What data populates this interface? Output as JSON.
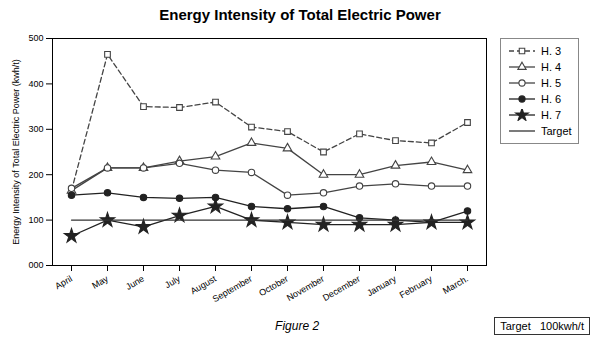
{
  "chart_data": {
    "type": "line",
    "title": "Energy Intensity of Total Electric Power",
    "ylabel": "Energy Intensity of Total Electric Power (kwh/t)",
    "annotations": [
      "Target   100kwh/t"
    ],
    "caption": "Figure 2",
    "categories": [
      "April",
      "May",
      "June",
      "July",
      "August",
      "September",
      "October",
      "November",
      "December",
      "January",
      "February",
      "March."
    ],
    "ylim": [
      0,
      500
    ],
    "yticks": [
      {
        "value": 0,
        "label": "000"
      },
      100,
      200,
      300,
      400,
      500
    ],
    "grid": false,
    "legend": "right",
    "series": [
      {
        "name": "H. 3",
        "color": "#444444",
        "marker": "square-open",
        "line_style": "dashed",
        "values": [
          165,
          465,
          350,
          348,
          360,
          305,
          295,
          250,
          290,
          275,
          270,
          315
        ]
      },
      {
        "name": "H. 4",
        "color": "#444444",
        "marker": "triangle-open",
        "line_style": "solid",
        "values": [
          165,
          215,
          215,
          230,
          240,
          270,
          258,
          200,
          200,
          220,
          228,
          210
        ]
      },
      {
        "name": "H. 5",
        "color": "#444444",
        "marker": "circle-open",
        "line_style": "solid",
        "values": [
          170,
          215,
          215,
          225,
          210,
          205,
          155,
          160,
          175,
          180,
          175,
          175
        ]
      },
      {
        "name": "H. 6",
        "color": "#222222",
        "marker": "circle",
        "line_style": "solid",
        "values": [
          155,
          160,
          150,
          148,
          150,
          130,
          125,
          130,
          105,
          100,
          95,
          120
        ]
      },
      {
        "name": "H. 7",
        "color": "#222222",
        "marker": "star",
        "line_style": "solid",
        "values": [
          65,
          100,
          85,
          110,
          130,
          100,
          95,
          90,
          90,
          90,
          95,
          95
        ]
      },
      {
        "name": "Target",
        "color": "#333333",
        "marker": "none",
        "line_style": "solid",
        "values": [
          100,
          100,
          100,
          100,
          100,
          100,
          100,
          100,
          100,
          100,
          100,
          100
        ]
      }
    ]
  }
}
